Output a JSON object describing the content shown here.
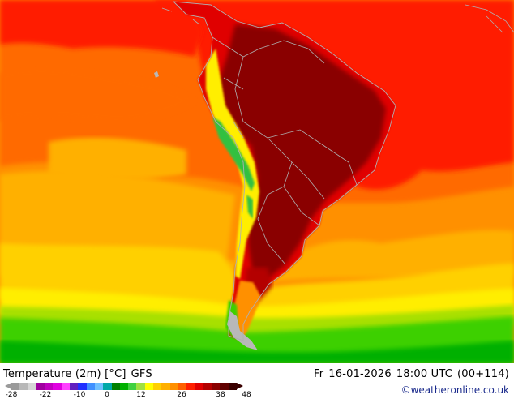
{
  "header": {
    "variable": "Temperature (2m) [°C]",
    "model": "GFS",
    "day": "Fr",
    "date": "16-01-2026",
    "time": "18:00 UTC",
    "run": "(00+114)"
  },
  "credit": "©weatheronline.co.uk",
  "legend": {
    "ticks": [
      "-28",
      "-22",
      "-10",
      "0",
      "12",
      "26",
      "38",
      "48"
    ],
    "colors": [
      "#9a9a9a",
      "#b8b8b8",
      "#d6d6d6",
      "#a000a0",
      "#c000c0",
      "#e000e0",
      "#ff40ff",
      "#6020c0",
      "#2030ff",
      "#4090ff",
      "#70c0ff",
      "#00a8a8",
      "#008000",
      "#00b000",
      "#40d040",
      "#a0e040",
      "#ffff00",
      "#ffd000",
      "#ffb000",
      "#ff9000",
      "#ff6000",
      "#ff2000",
      "#e00000",
      "#b40000",
      "#8a0000",
      "#600000",
      "#3a0000"
    ]
  },
  "map": {
    "region": "South America",
    "colors": {
      "ocean_hot": "#ff1a00",
      "ocean_warm": "#ff6a00",
      "ocean_mild": "#ff9000",
      "ocean_cool": "#ffb000",
      "ocean_cold": "#ffd000",
      "ocean_yellow": "#ffee00",
      "ocean_lime": "#a8e000",
      "ocean_green": "#3cd000",
      "ocean_dkgreen": "#00b000",
      "land_hot": "#8a0000",
      "land_warm": "#b40000",
      "land_red": "#e00000",
      "andes_green": "#30c040",
      "ice": "#b8b8b8",
      "border": "#b0b0b0"
    }
  }
}
